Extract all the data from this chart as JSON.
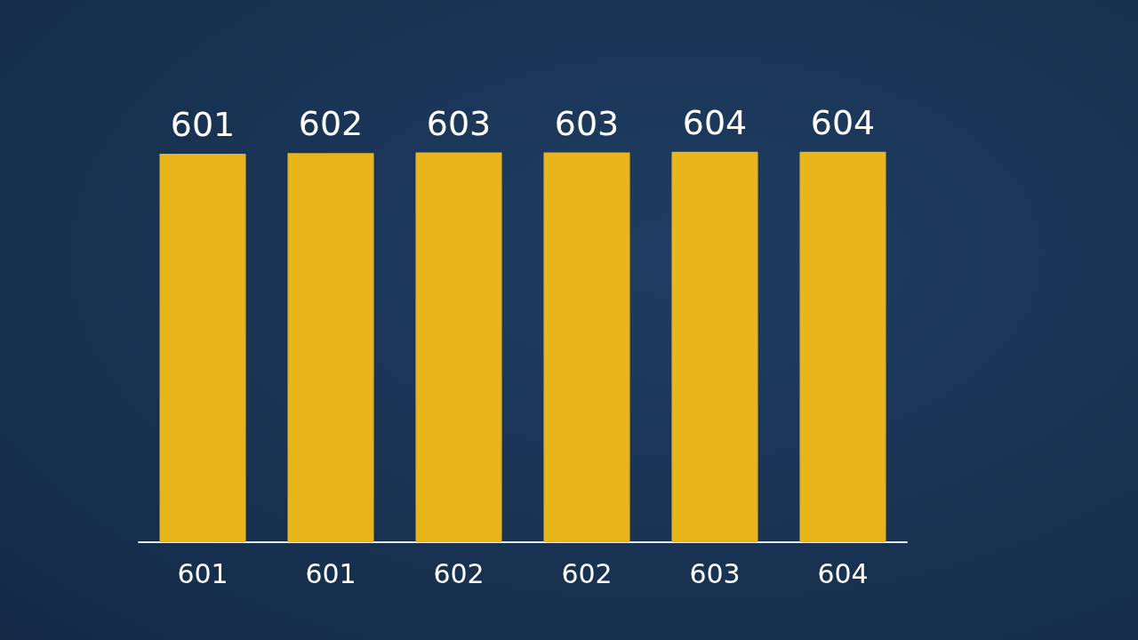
{
  "chart_data": {
    "type": "bar",
    "categories": [
      "601",
      "601",
      "602",
      "602",
      "603",
      "604"
    ],
    "values": [
      601,
      602,
      603,
      603,
      604,
      604
    ],
    "data_labels": true,
    "color": "#e8b61c",
    "tick_labels": "x",
    "grid": false
  }
}
